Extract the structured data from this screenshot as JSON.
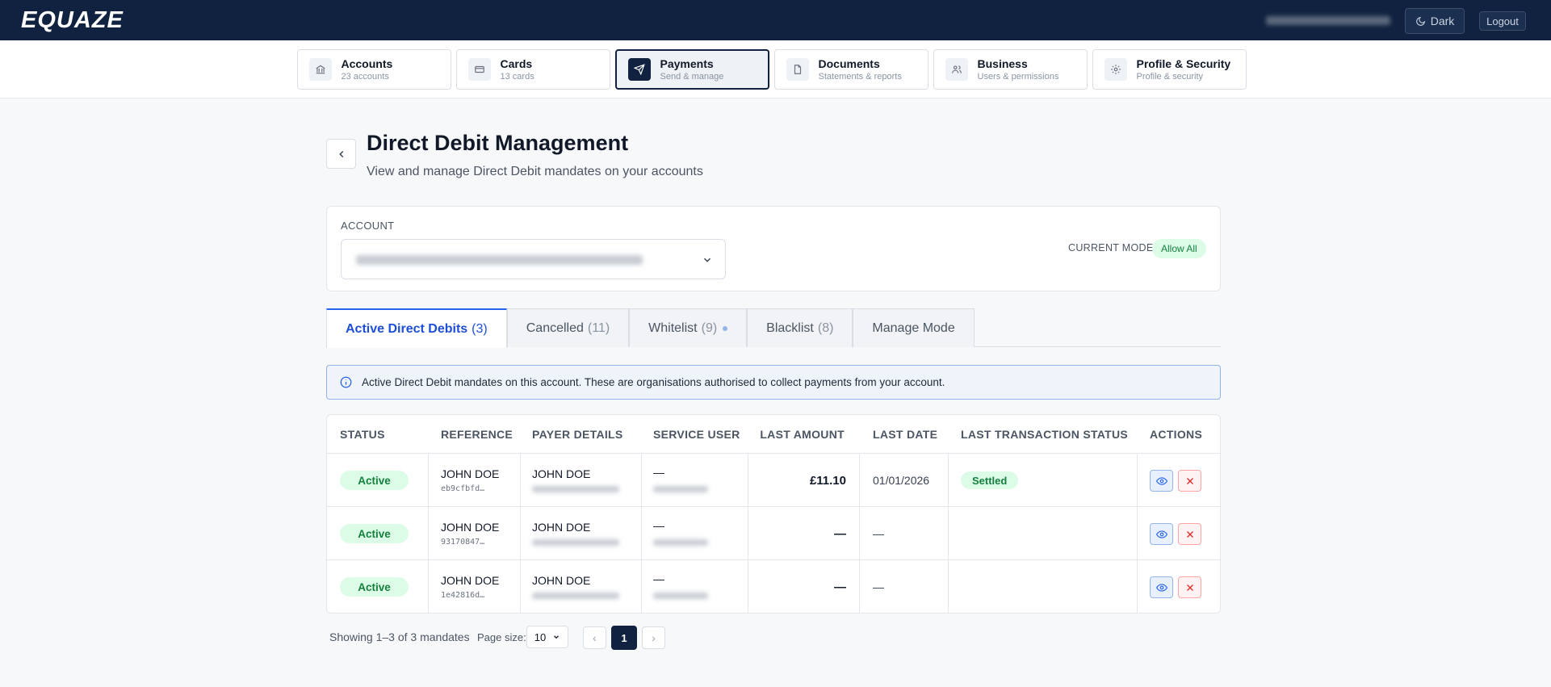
{
  "header": {
    "brand": "EQUAZE",
    "theme_button": "Dark",
    "logout_button": "Logout"
  },
  "nav": [
    {
      "title": "Accounts",
      "subtitle": "23 accounts"
    },
    {
      "title": "Cards",
      "subtitle": "13 cards"
    },
    {
      "title": "Payments",
      "subtitle": "Send & manage"
    },
    {
      "title": "Documents",
      "subtitle": "Statements & reports"
    },
    {
      "title": "Business",
      "subtitle": "Users & permissions"
    },
    {
      "title": "Profile & Security",
      "subtitle": "Profile & security"
    }
  ],
  "page": {
    "title": "Direct Debit Management",
    "subtitle": "View and manage Direct Debit mandates on your accounts"
  },
  "account": {
    "label": "ACCOUNT",
    "mode_label": "CURRENT MODE",
    "mode": "Allow All"
  },
  "tabs": [
    {
      "label": "Active Direct Debits",
      "count": "(3)"
    },
    {
      "label": "Cancelled",
      "count": "(11)"
    },
    {
      "label": "Whitelist",
      "count": "(9)"
    },
    {
      "label": "Blacklist",
      "count": "(8)"
    },
    {
      "label": "Manage Mode"
    }
  ],
  "info": "Active Direct Debit mandates on this account. These are organisations authorised to collect payments from your account.",
  "table": {
    "columns": [
      "STATUS",
      "REFERENCE",
      "PAYER DETAILS",
      "SERVICE USER",
      "LAST AMOUNT",
      "LAST DATE",
      "LAST TRANSACTION STATUS",
      "ACTIONS"
    ],
    "rows": [
      {
        "status": "Active",
        "reference": "JOHN DOE",
        "reference_id": "eb9cfbfd…",
        "payer": "JOHN DOE",
        "service_user": "—",
        "last_amount": "£11.10",
        "last_date": "01/01/2026",
        "last_status": "Settled"
      },
      {
        "status": "Active",
        "reference": "JOHN DOE",
        "reference_id": "93170847…",
        "payer": "JOHN DOE",
        "service_user": "—",
        "last_amount": "—",
        "last_date": "—"
      },
      {
        "status": "Active",
        "reference": "JOHN DOE",
        "reference_id": "1e42816d…",
        "payer": "JOHN DOE",
        "service_user": "—",
        "last_amount": "—",
        "last_date": "—"
      }
    ]
  },
  "pagination": {
    "summary": "Showing 1–3 of 3 mandates",
    "page_size_label": "Page size:",
    "page_size": "10",
    "prev": "‹",
    "current": "1",
    "next": "›"
  }
}
